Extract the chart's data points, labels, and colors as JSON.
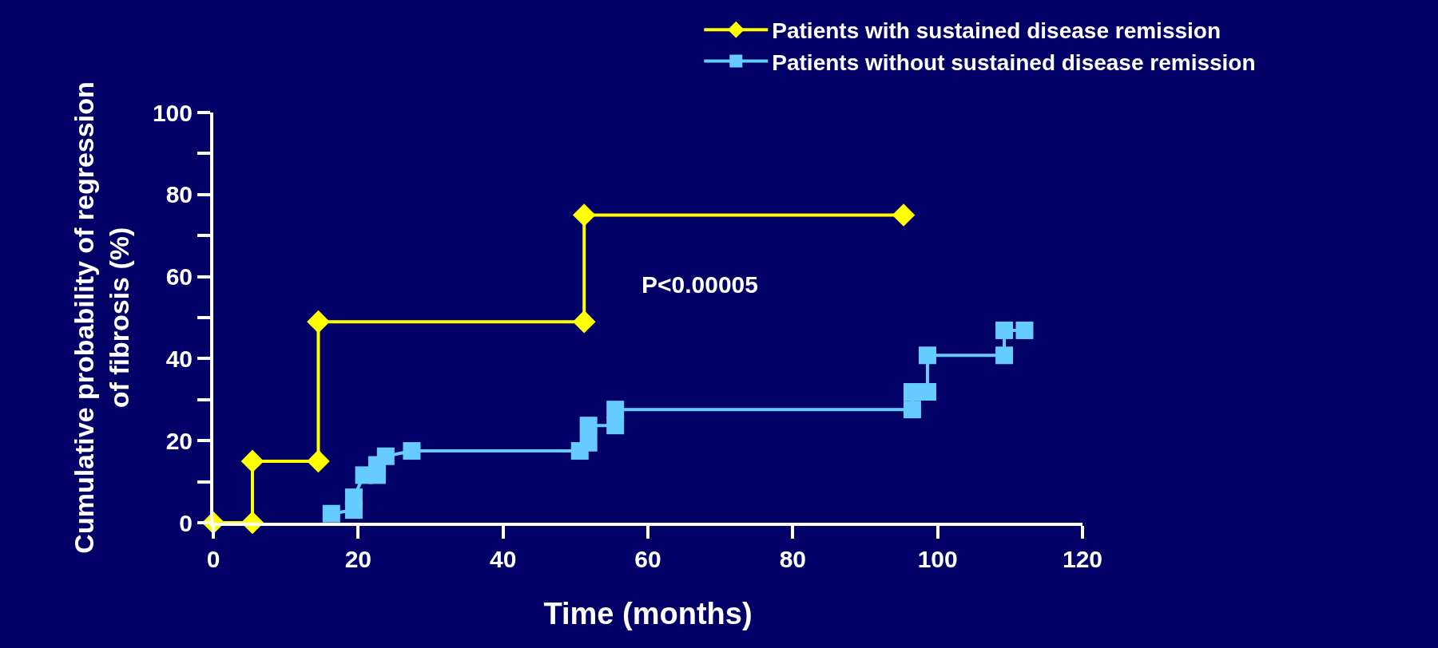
{
  "chart_data": {
    "type": "line",
    "xlabel": "Time (months)",
    "ylabel": "Cumulative probability of regression of fibrosis (%)",
    "xlim": [
      0,
      120
    ],
    "xticks": [
      0,
      20,
      40,
      60,
      80,
      100,
      120
    ],
    "ylim": [
      0,
      100
    ],
    "yticks": [
      0,
      {
        "value": 10,
        "label": null
      },
      20,
      {
        "value": 30,
        "label": null
      },
      40,
      {
        "value": 50,
        "label": null
      },
      60,
      {
        "value": 70,
        "label": null
      },
      80,
      {
        "value": 90,
        "label": null
      },
      100
    ],
    "grid": false,
    "legend": "top right",
    "line_style": "solid",
    "annotations": [
      "P<0.00005"
    ],
    "series": [
      {
        "name": "Patients with sustained disease remission",
        "color": "#ffff00",
        "marker": "diamond",
        "x": [
          0,
          5.4,
          5.4,
          14.5,
          14.5,
          51.2,
          51.2,
          95.3
        ],
        "values": [
          0,
          0,
          15,
          15,
          49,
          49,
          75,
          75
        ]
      },
      {
        "name": "Patients without sustained disease remission",
        "color": "#66ccff",
        "marker": "square",
        "x": [
          16.3,
          19.4,
          19.4,
          20.8,
          22.6,
          22.6,
          23.8,
          27.4,
          50.6,
          51.8,
          51.8,
          55.5,
          55.5,
          96.5,
          96.5,
          98.6,
          98.6,
          109.2,
          109.2,
          112
        ],
        "values": [
          2.2,
          3.1,
          6.2,
          11.6,
          11.6,
          14.1,
          16.2,
          17.5,
          17.5,
          19.5,
          23.7,
          23.7,
          27.6,
          27.6,
          31.9,
          31.9,
          40.8,
          40.8,
          46.9,
          46.9
        ]
      }
    ]
  }
}
